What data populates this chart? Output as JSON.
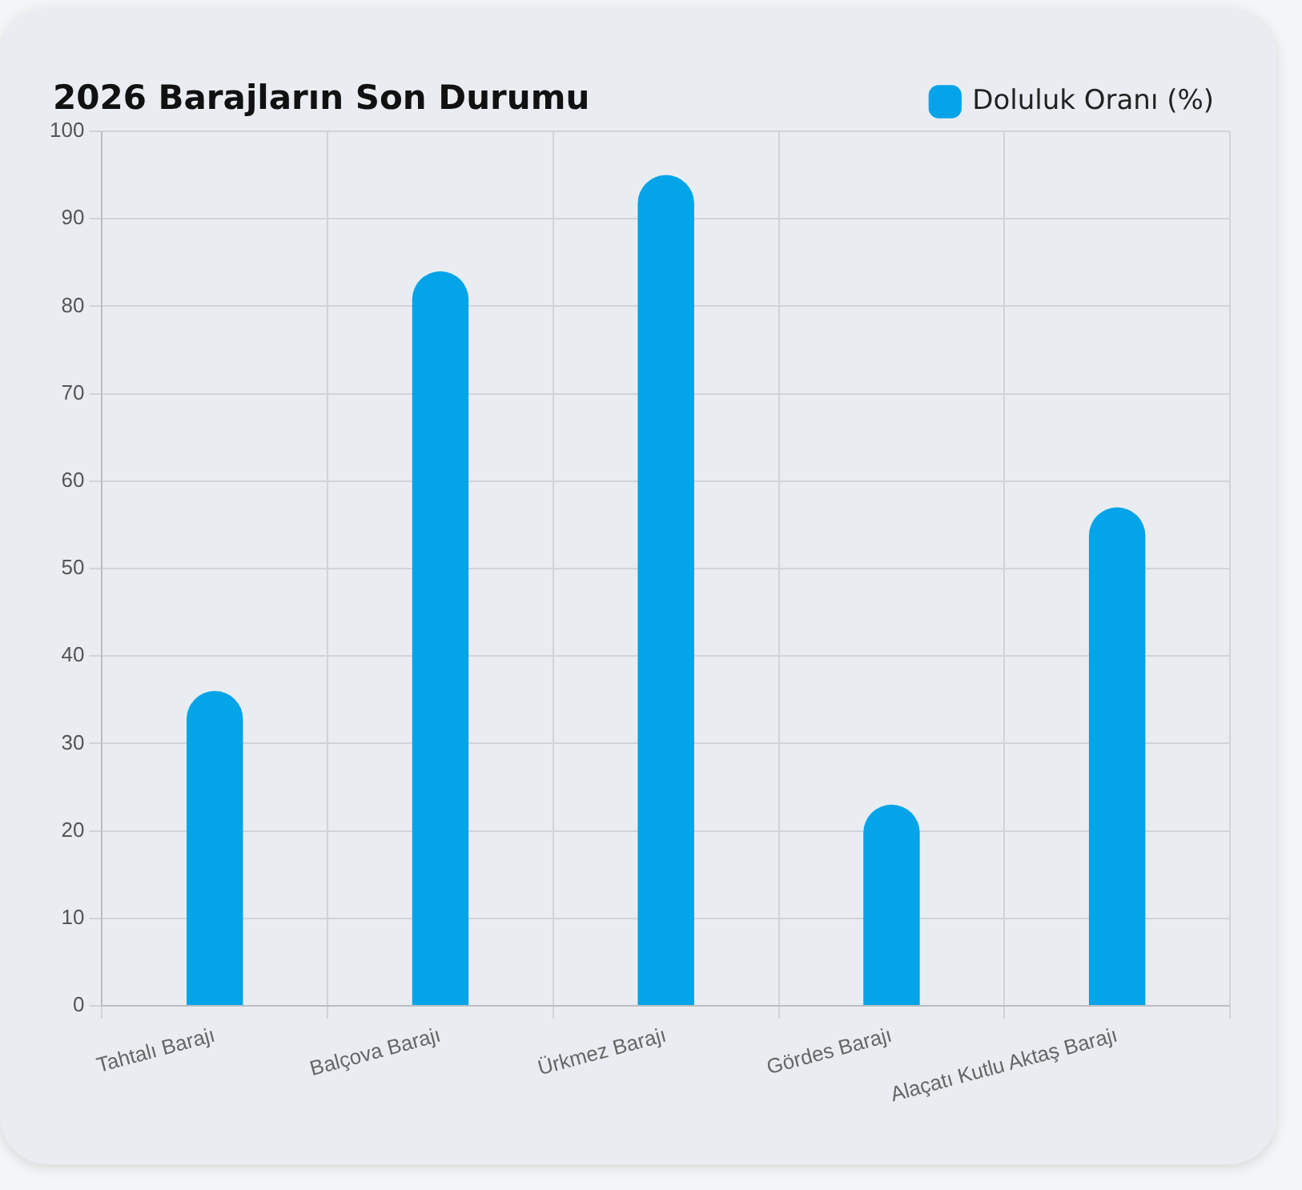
{
  "chart_data": {
    "type": "bar",
    "title": "2026 Barajların Son Durumu",
    "categories": [
      "Tahtalı Barajı",
      "Balçova Barajı",
      "Ürkmez Barajı",
      "Gördes Barajı",
      "Alaçatı Kutlu Aktaş Barajı"
    ],
    "series": [
      {
        "name": "Doluluk Oranı (%)",
        "color": "#03a4e8",
        "values": [
          36,
          84,
          95,
          23,
          57
        ]
      }
    ],
    "ylim": [
      0,
      100
    ],
    "yticks": [
      0,
      10,
      20,
      30,
      40,
      50,
      60,
      70,
      80,
      90,
      100
    ],
    "grid": true,
    "legend": "top right"
  }
}
